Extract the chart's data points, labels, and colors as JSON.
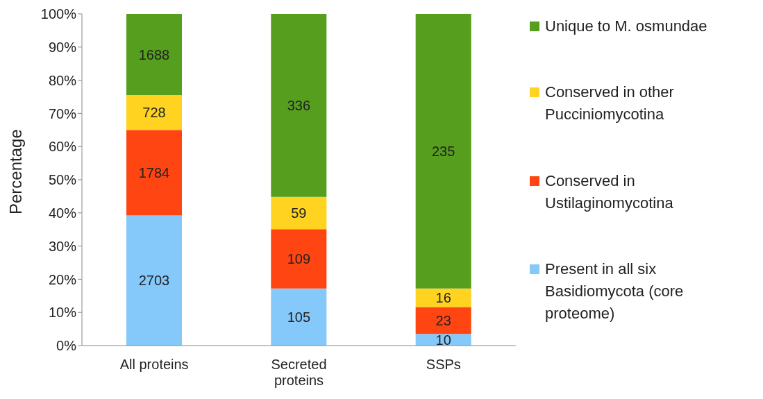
{
  "chart_data": {
    "type": "bar",
    "stacked": true,
    "ylabel": "Percentage",
    "legend": "right",
    "categories": [
      "All proteins",
      "Secreted proteins",
      "SSPs"
    ],
    "ylim": [
      0,
      100
    ],
    "yticks": [
      {
        "value": 0,
        "label": "0%"
      },
      {
        "value": 10,
        "label": "10%"
      },
      {
        "value": 20,
        "label": "20%"
      },
      {
        "value": 30,
        "label": "30%"
      },
      {
        "value": 40,
        "label": "40%"
      },
      {
        "value": 50,
        "label": "50%"
      },
      {
        "value": 60,
        "label": "60%"
      },
      {
        "value": 70,
        "label": "70%"
      },
      {
        "value": 80,
        "label": "80%"
      },
      {
        "value": 90,
        "label": "90%"
      },
      {
        "value": 100,
        "label": "100%"
      }
    ],
    "series": [
      {
        "name": "Present in all six Basidiomycota (core proteome)",
        "color": "#85c8fa",
        "values": [
          39.2,
          17.2,
          3.5
        ]
      },
      {
        "name": "Conserved in Ustilaginomycotina",
        "color": "#ff4612",
        "values": [
          25.8,
          17.9,
          8.1
        ]
      },
      {
        "name": "Conserved in other Pucciniomycotina",
        "color": "#ffd320",
        "values": [
          10.5,
          9.7,
          5.6
        ]
      },
      {
        "name": "Unique to M. osmundae",
        "color": "#559e1e",
        "values": [
          24.5,
          55.2,
          82.8
        ]
      }
    ],
    "annotations": [
      "2703",
      "1784",
      "728",
      "1688",
      "105",
      "109",
      "59",
      "336",
      "10",
      "23",
      "16",
      "235"
    ]
  }
}
